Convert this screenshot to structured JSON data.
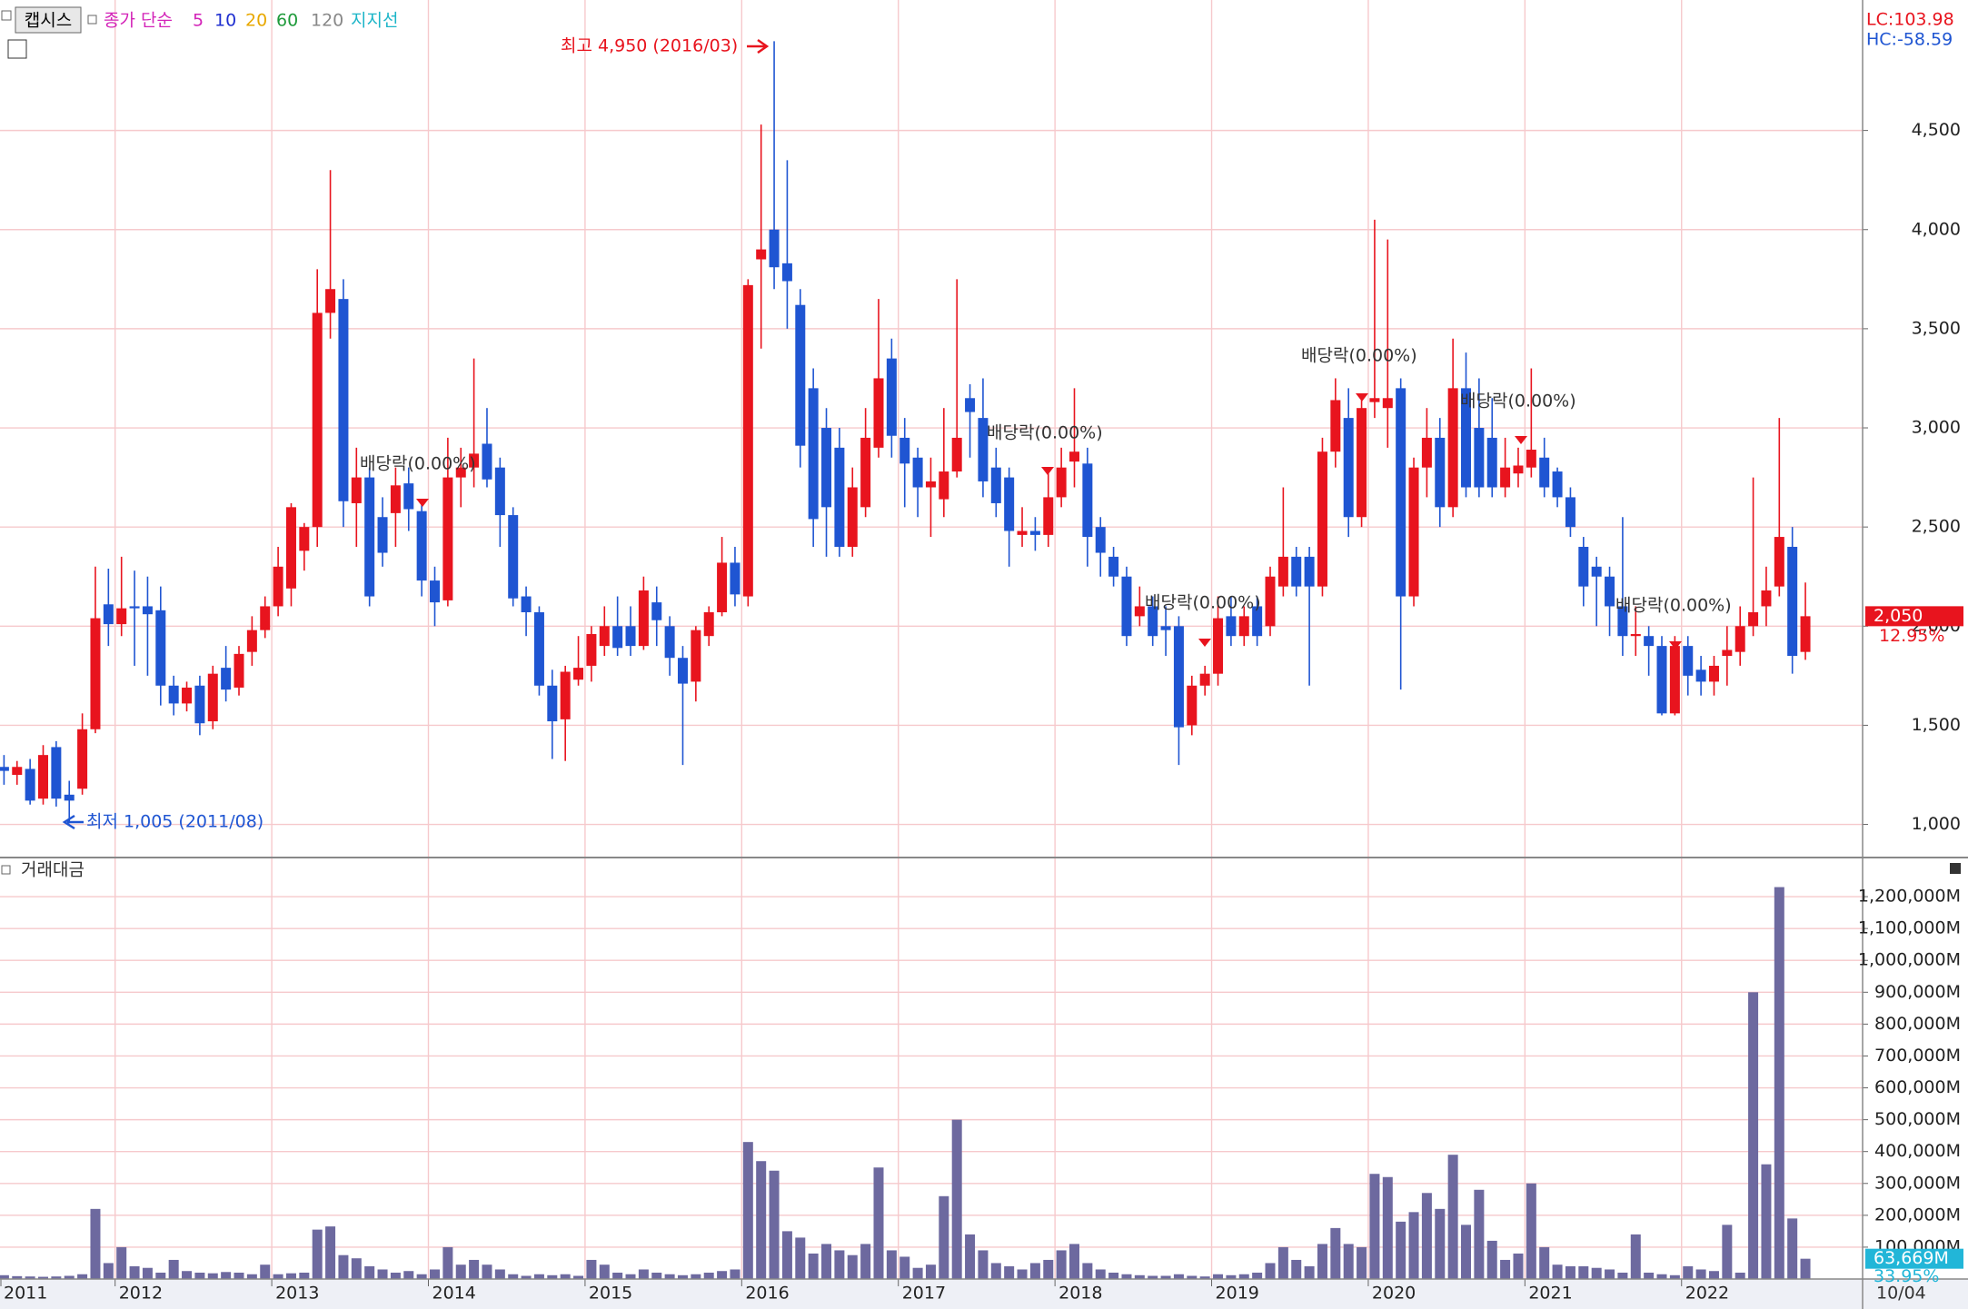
{
  "chart_data": {
    "type": "candlestick",
    "legend": {
      "name": "캡시스",
      "method": "종가 단순",
      "periods": [
        "5",
        "10",
        "20",
        "60",
        "120"
      ],
      "support": "지지선"
    },
    "lc": "LC:103.98",
    "hc": "HC:-58.59",
    "high_note": "최고 4,950 (2016/03)",
    "low_note": "최저 1,005 (2011/08)",
    "dividend_notes": [
      "배당락(0.00%)",
      "배당락(0.00%)",
      "배당락(0.00%)",
      "배당락(0.00%)",
      "배당락(0.00%)",
      "배당락(0.00%)"
    ],
    "last_price": {
      "value": 2050,
      "label": "2,050"
    },
    "change": "12.95%",
    "volume_title": "거래대금",
    "last_volume": {
      "value": 63669,
      "label": "63,669M"
    },
    "volume_change": "33.95%",
    "x_end_label": "10/04",
    "up_color": "#e8141e",
    "down_color": "#1f55d2",
    "volume_color": "#6d699f",
    "categories": [
      "2011",
      null,
      null,
      null,
      null,
      null,
      null,
      null,
      null,
      null,
      null,
      null,
      "2012",
      null,
      null,
      null,
      null,
      null,
      null,
      null,
      null,
      null,
      null,
      null,
      "2013",
      null,
      null,
      null,
      null,
      null,
      null,
      null,
      null,
      null,
      null,
      null,
      "2014",
      null,
      null,
      null,
      null,
      null,
      null,
      null,
      null,
      null,
      null,
      null,
      "2015",
      null,
      null,
      null,
      null,
      null,
      null,
      null,
      null,
      null,
      null,
      null,
      "2016",
      null,
      null,
      null,
      null,
      null,
      null,
      null,
      null,
      null,
      null,
      null,
      "2017",
      null,
      null,
      null,
      null,
      null,
      null,
      null,
      null,
      null,
      null,
      null,
      "2018",
      null,
      null,
      null,
      null,
      null,
      null,
      null,
      null,
      null,
      null,
      null,
      "2019",
      null,
      null,
      null,
      null,
      null,
      null,
      null,
      null,
      null,
      null,
      null,
      "2020",
      null,
      null,
      null,
      null,
      null,
      null,
      null,
      null,
      null,
      null,
      null,
      "2021",
      null,
      null,
      null,
      null,
      null,
      null,
      null,
      null,
      null,
      null,
      null,
      "2022",
      null,
      null,
      null,
      null,
      null,
      null,
      null,
      null,
      null
    ],
    "open": [
      null,
      null,
      null,
      1290,
      1250,
      1280,
      1130,
      1390,
      1150,
      1180,
      1480,
      2110,
      2010,
      2100,
      2100,
      2080,
      1700,
      1610,
      1700,
      1520,
      1790,
      1690,
      1870,
      1980,
      2100,
      2190,
      2380,
      2500,
      3580,
      3650,
      2620,
      2750,
      2550,
      2570,
      2720,
      2580,
      2230,
      2130,
      2750,
      2800,
      2920,
      2800,
      2560,
      2150,
      2070,
      1700,
      1530,
      1730,
      1800,
      1900,
      2000,
      2000,
      1900,
      2120,
      2000,
      1840,
      1720,
      1950,
      2070,
      2320,
      2150,
      3850,
      4000,
      3830,
      3620,
      3200,
      3000,
      2900,
      2400,
      2600,
      2900,
      3350,
      2950,
      2850,
      2700,
      2640,
      2780,
      3150,
      3050,
      2800,
      2750,
      2460,
      2480,
      2460,
      2650,
      2830,
      2820,
      2500,
      2350,
      2250,
      2050,
      2100,
      2000,
      2000,
      1500,
      1700,
      1760,
      2050,
      1950,
      2100,
      2000,
      2200,
      2350,
      2350,
      2200,
      2880,
      3050,
      2550,
      3130,
      3100,
      3200,
      2150,
      2800,
      2950,
      2600,
      3200,
      3000,
      2950,
      2700,
      2770,
      2800,
      2850,
      2780,
      2650,
      2400,
      2300,
      2250,
      2100,
      1950,
      1950,
      1900,
      1560,
      1900,
      1780,
      1720,
      1850,
      1870,
      2000,
      2100,
      2200,
      2400,
      1870
    ],
    "high": [
      null,
      null,
      null,
      1350,
      1320,
      1330,
      1400,
      1420,
      1220,
      1560,
      2300,
      2290,
      2350,
      2280,
      2250,
      2200,
      1750,
      1720,
      1750,
      1800,
      1900,
      1900,
      2050,
      2150,
      2400,
      2620,
      2520,
      3800,
      4300,
      3750,
      2900,
      2800,
      2650,
      2800,
      2800,
      2640,
      2300,
      2950,
      2900,
      3350,
      3100,
      2850,
      2600,
      2200,
      2100,
      1780,
      1800,
      1950,
      2000,
      2100,
      2150,
      2100,
      2250,
      2200,
      2050,
      1900,
      2000,
      2100,
      2450,
      2400,
      3750,
      4530,
      4950,
      4350,
      3700,
      3300,
      3100,
      3000,
      2800,
      3100,
      3650,
      3450,
      3050,
      2900,
      2850,
      3100,
      3750,
      3220,
      3250,
      2900,
      2800,
      2600,
      2550,
      2800,
      2900,
      3200,
      2900,
      2550,
      2400,
      2300,
      2200,
      2150,
      2100,
      2050,
      1750,
      1800,
      2150,
      2150,
      2100,
      2150,
      2300,
      2700,
      2400,
      2400,
      2950,
      3250,
      3200,
      3150,
      4050,
      3950,
      3250,
      2850,
      3100,
      3050,
      3450,
      3380,
      3250,
      3150,
      2950,
      2900,
      3300,
      2950,
      2800,
      2700,
      2450,
      2350,
      2300,
      2550,
      2100,
      2000,
      1950,
      1950,
      1950,
      1850,
      1850,
      2000,
      2100,
      2750,
      2300,
      3050,
      2500,
      2220
    ],
    "low": [
      null,
      null,
      null,
      1200,
      1200,
      1100,
      1100,
      1090,
      1005,
      1150,
      1460,
      1900,
      1950,
      1800,
      1750,
      1600,
      1550,
      1570,
      1450,
      1480,
      1620,
      1650,
      1800,
      1940,
      2050,
      2100,
      2280,
      2400,
      3450,
      2500,
      2400,
      2100,
      2300,
      2400,
      2480,
      2150,
      2000,
      2100,
      2600,
      2700,
      2700,
      2400,
      2100,
      1950,
      1650,
      1330,
      1320,
      1700,
      1720,
      1850,
      1850,
      1850,
      1880,
      1900,
      1750,
      1300,
      1620,
      1900,
      2050,
      2100,
      2100,
      3400,
      3700,
      3500,
      2800,
      2400,
      2350,
      2350,
      2350,
      2550,
      2850,
      2850,
      2600,
      2550,
      2450,
      2550,
      2750,
      2850,
      2650,
      2550,
      2300,
      2400,
      2380,
      2400,
      2600,
      2700,
      2300,
      2250,
      2200,
      1900,
      2000,
      1900,
      1850,
      1300,
      1450,
      1650,
      1700,
      1900,
      1900,
      1900,
      1950,
      2150,
      2150,
      1700,
      2150,
      2800,
      2450,
      2500,
      3050,
      2900,
      1680,
      2100,
      2650,
      2500,
      2550,
      2650,
      2650,
      2650,
      2650,
      2700,
      2750,
      2650,
      2600,
      2450,
      2100,
      2000,
      1950,
      1850,
      1850,
      1750,
      1550,
      1550,
      1650,
      1650,
      1650,
      1700,
      1800,
      1950,
      2000,
      2150,
      1760,
      1830
    ],
    "close": [
      null,
      null,
      null,
      1270,
      1290,
      1120,
      1350,
      1130,
      1120,
      1480,
      2040,
      2010,
      2090,
      2090,
      2060,
      1700,
      1610,
      1690,
      1510,
      1760,
      1680,
      1860,
      1980,
      2100,
      2300,
      2600,
      2500,
      3580,
      3700,
      2630,
      2750,
      2150,
      2370,
      2710,
      2590,
      2230,
      2120,
      2750,
      2800,
      2870,
      2740,
      2560,
      2140,
      2070,
      1700,
      1520,
      1770,
      1790,
      1960,
      2000,
      1890,
      1900,
      2180,
      2030,
      1840,
      1710,
      1980,
      2070,
      2320,
      2160,
      3720,
      3900,
      3810,
      3740,
      2910,
      2540,
      2600,
      2400,
      2700,
      2950,
      3250,
      2960,
      2820,
      2700,
      2730,
      2780,
      2950,
      3080,
      2730,
      2620,
      2480,
      2480,
      2460,
      2650,
      2800,
      2880,
      2450,
      2370,
      2250,
      1950,
      2100,
      1950,
      1980,
      1490,
      1700,
      1760,
      2040,
      1950,
      2050,
      1950,
      2250,
      2350,
      2200,
      2200,
      2880,
      3140,
      2550,
      3100,
      3150,
      3150,
      2150,
      2800,
      2950,
      2600,
      3200,
      2700,
      2700,
      2700,
      2800,
      2810,
      2890,
      2700,
      2650,
      2500,
      2200,
      2250,
      2100,
      1950,
      1960,
      1900,
      1560,
      1900,
      1750,
      1720,
      1800,
      1880,
      2000,
      2070,
      2180,
      2450,
      1850,
      2050
    ],
    "volume": [
      null,
      null,
      null,
      12000,
      9000,
      8000,
      7000,
      8000,
      10000,
      15000,
      220000,
      50000,
      100000,
      40000,
      35000,
      20000,
      60000,
      25000,
      20000,
      18000,
      22000,
      20000,
      15000,
      45000,
      15000,
      18000,
      20000,
      155000,
      165000,
      75000,
      65000,
      40000,
      30000,
      20000,
      25000,
      15000,
      30000,
      100000,
      45000,
      60000,
      45000,
      30000,
      15000,
      10000,
      15000,
      12000,
      15000,
      10000,
      60000,
      45000,
      20000,
      15000,
      30000,
      20000,
      15000,
      12000,
      15000,
      20000,
      25000,
      30000,
      430000,
      370000,
      340000,
      150000,
      130000,
      80000,
      110000,
      90000,
      75000,
      110000,
      350000,
      90000,
      70000,
      35000,
      45000,
      260000,
      500000,
      140000,
      90000,
      50000,
      40000,
      30000,
      50000,
      60000,
      90000,
      110000,
      50000,
      30000,
      20000,
      15000,
      12000,
      10000,
      10000,
      15000,
      10000,
      8000,
      15000,
      12000,
      15000,
      20000,
      50000,
      100000,
      60000,
      40000,
      110000,
      160000,
      110000,
      100000,
      330000,
      320000,
      180000,
      210000,
      270000,
      220000,
      390000,
      170000,
      280000,
      120000,
      60000,
      80000,
      300000,
      100000,
      45000,
      40000,
      40000,
      35000,
      30000,
      20000,
      140000,
      20000,
      15000,
      12000,
      40000,
      30000,
      25000,
      170000,
      20000,
      900000,
      360000,
      1230000,
      190000,
      63669
    ],
    "ylim": [
      833,
      5158
    ],
    "yticks": [
      {
        "value": 1000,
        "label": "1,000"
      },
      {
        "value": 1500,
        "label": "1,500"
      },
      {
        "value": 2000,
        "label": "2,000"
      },
      {
        "value": 2500,
        "label": "2,500"
      },
      {
        "value": 3000,
        "label": "3,000"
      },
      {
        "value": 3500,
        "label": "3,500"
      },
      {
        "value": 4000,
        "label": "4,000"
      },
      {
        "value": 4500,
        "label": "4,500"
      }
    ],
    "y2lim": [
      0,
      1300000
    ],
    "y2ticks": [
      {
        "value": 100000,
        "label": "100,000M"
      },
      {
        "value": 200000,
        "label": "200,000M"
      },
      {
        "value": 300000,
        "label": "300,000M"
      },
      {
        "value": 400000,
        "label": "400,000M"
      },
      {
        "value": 500000,
        "label": "500,000M"
      },
      {
        "value": 600000,
        "label": "600,000M"
      },
      {
        "value": 700000,
        "label": "700,000M"
      },
      {
        "value": 800000,
        "label": "800,000M"
      },
      {
        "value": 900000,
        "label": "900,000M"
      },
      {
        "value": 1000000,
        "label": "1,000,000M"
      },
      {
        "value": 1100000,
        "label": "1,100,000M"
      },
      {
        "value": 1200000,
        "label": "1,200,000M"
      }
    ],
    "grid": true
  }
}
